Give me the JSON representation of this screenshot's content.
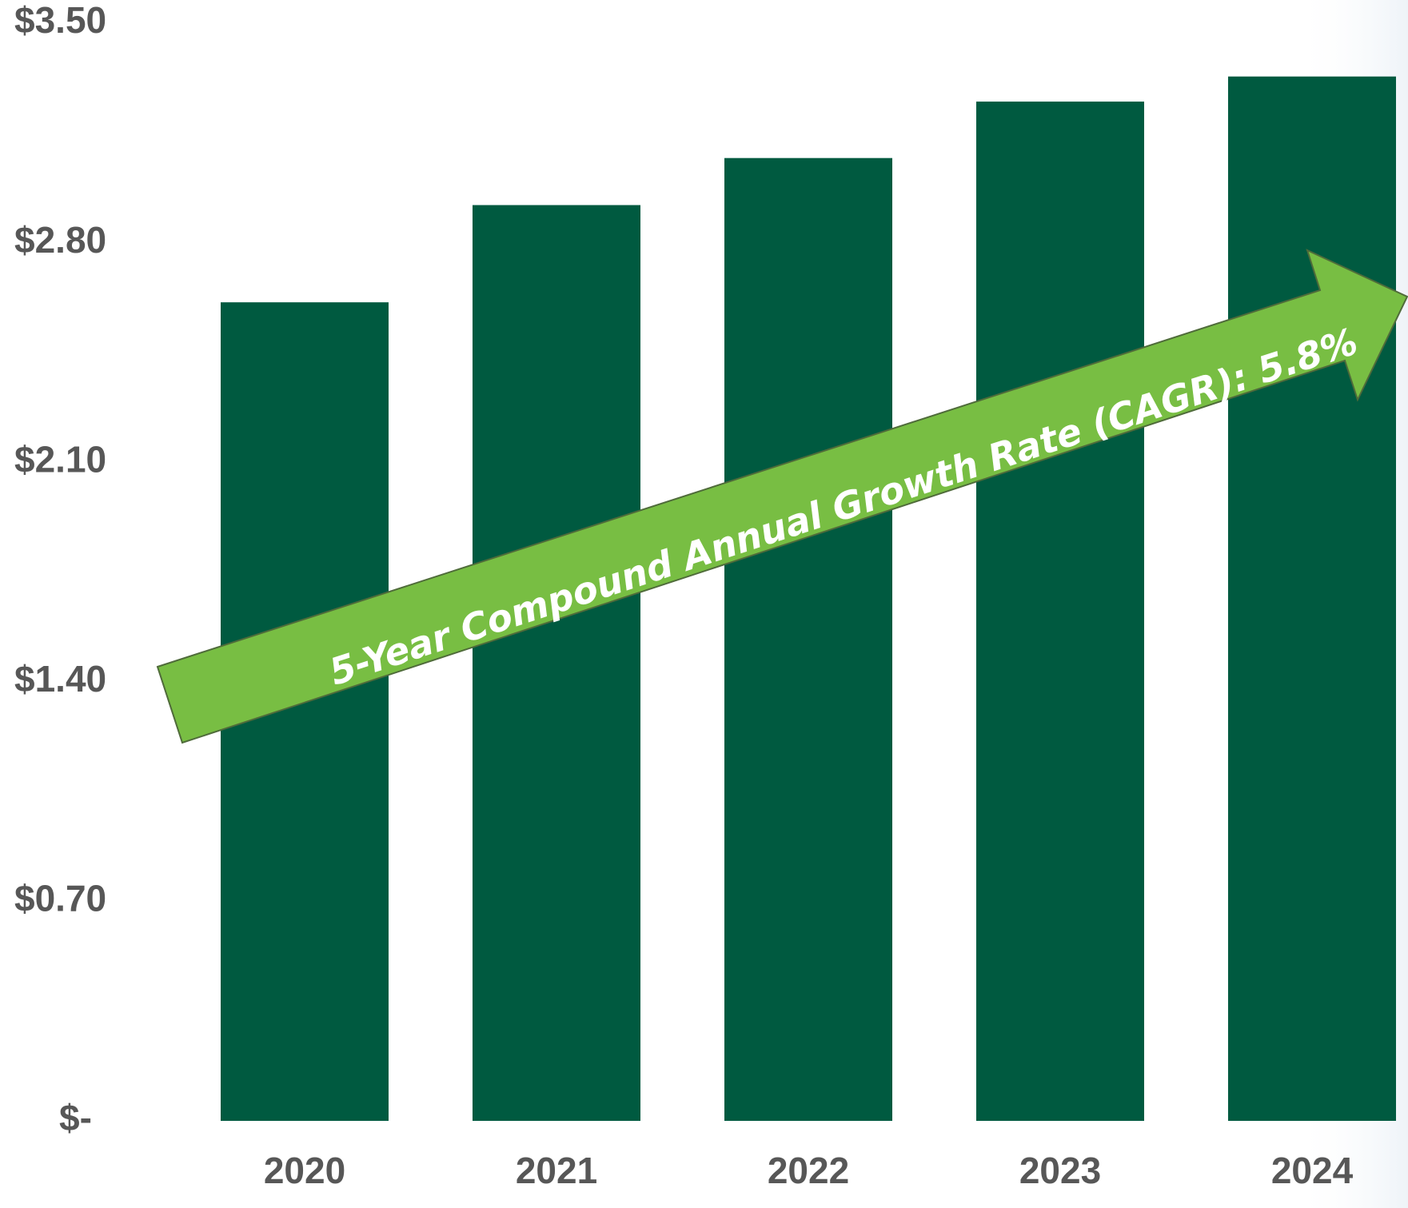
{
  "chart_data": {
    "type": "bar",
    "categories": [
      "2020",
      "2021",
      "2022",
      "2023",
      "2024"
    ],
    "values": [
      2.61,
      2.92,
      3.07,
      3.25,
      3.33
    ],
    "y_tick_labels": [
      "$-",
      "$0.70",
      "$1.40",
      "$2.10",
      "$2.80",
      "$3.50"
    ],
    "y_tick_values": [
      0,
      0.7,
      1.4,
      2.1,
      2.8,
      3.5
    ],
    "ylim": [
      0,
      3.5
    ],
    "grid": false,
    "annotation": "5-Year Compound Annual Growth Rate (CAGR): 5.8%"
  },
  "colors": {
    "bar": "#005A40",
    "arrow_fill": "#78BE43",
    "arrow_stroke": "#4F6B3A",
    "tick_text": "#575757",
    "annotation_text": "#FFFFFF"
  }
}
